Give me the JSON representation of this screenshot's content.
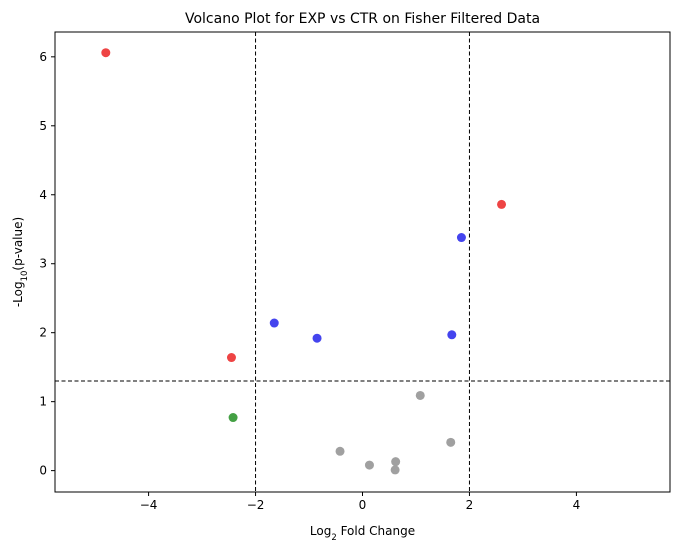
{
  "chart_data": {
    "type": "scatter",
    "title": "Volcano Plot for EXP vs CTR on Fisher Filtered Data",
    "xlabel": {
      "prefix": "Log",
      "sub": "2",
      "suffix": " Fold Change"
    },
    "ylabel": {
      "prefix": "-Log",
      "sub": "10",
      "suffix": "(p-value)"
    },
    "xlim": [
      -5.75,
      5.75
    ],
    "ylim": [
      -0.31,
      6.36
    ],
    "xticks": [
      -4,
      -2,
      0,
      2,
      4
    ],
    "xtick_labels": [
      "−4",
      "−2",
      "0",
      "2",
      "4"
    ],
    "yticks": [
      0,
      1,
      2,
      3,
      4,
      5,
      6
    ],
    "ytick_labels": [
      "0",
      "1",
      "2",
      "3",
      "4",
      "5",
      "6"
    ],
    "grid": false,
    "threshold_lines": {
      "x": [
        -2,
        2
      ],
      "y": [
        1.3
      ]
    },
    "points": [
      {
        "x": -4.8,
        "y": 6.06,
        "color": "#ee4444"
      },
      {
        "x": 2.6,
        "y": 3.86,
        "color": "#ee4444"
      },
      {
        "x": -2.45,
        "y": 1.64,
        "color": "#ee4444"
      },
      {
        "x": 1.85,
        "y": 3.38,
        "color": "#4444ee"
      },
      {
        "x": -1.65,
        "y": 2.14,
        "color": "#4444ee"
      },
      {
        "x": -0.85,
        "y": 1.92,
        "color": "#4444ee"
      },
      {
        "x": 1.67,
        "y": 1.97,
        "color": "#4444ee"
      },
      {
        "x": -2.42,
        "y": 0.77,
        "color": "#44a044"
      },
      {
        "x": 1.08,
        "y": 1.09,
        "color": "#a0a0a0"
      },
      {
        "x": 1.65,
        "y": 0.41,
        "color": "#a0a0a0"
      },
      {
        "x": -0.42,
        "y": 0.28,
        "color": "#a0a0a0"
      },
      {
        "x": 0.13,
        "y": 0.08,
        "color": "#a0a0a0"
      },
      {
        "x": 0.62,
        "y": 0.13,
        "color": "#a0a0a0"
      },
      {
        "x": 0.61,
        "y": 0.01,
        "color": "#a0a0a0"
      }
    ]
  }
}
